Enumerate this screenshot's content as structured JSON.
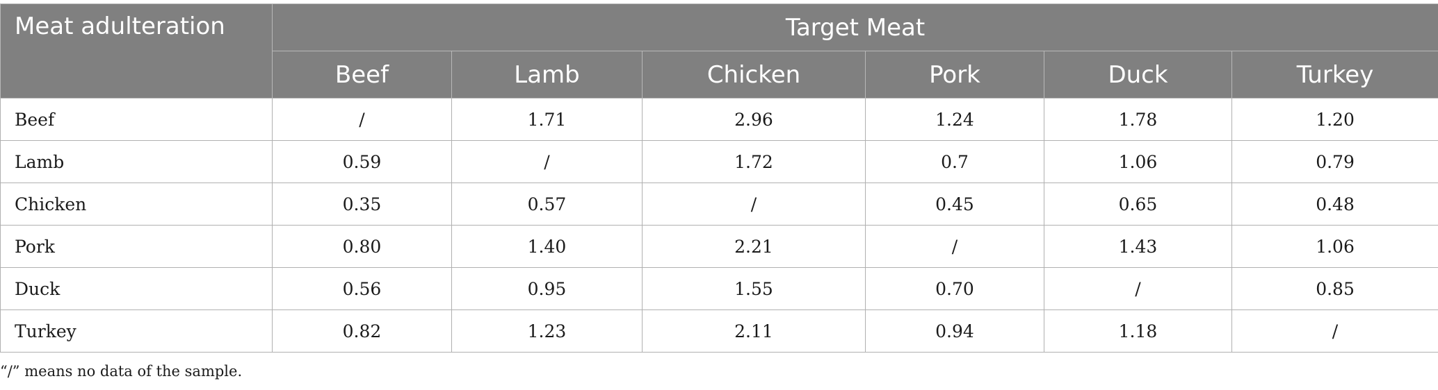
{
  "table": {
    "corner_header": "Meat adulteration",
    "group_header": "Target Meat",
    "columns": [
      "Beef",
      "Lamb",
      "Chicken",
      "Pork",
      "Duck",
      "Turkey"
    ],
    "rows": [
      {
        "label": "Beef",
        "values": [
          "/",
          "1.71",
          "2.96",
          "1.24",
          "1.78",
          "1.20"
        ]
      },
      {
        "label": "Lamb",
        "values": [
          "0.59",
          "/",
          "1.72",
          "0.7",
          "1.06",
          "0.79"
        ]
      },
      {
        "label": "Chicken",
        "values": [
          "0.35",
          "0.57",
          "/",
          "0.45",
          "0.65",
          "0.48"
        ]
      },
      {
        "label": "Pork",
        "values": [
          "0.80",
          "1.40",
          "2.21",
          "/",
          "1.43",
          "1.06"
        ]
      },
      {
        "label": "Duck",
        "values": [
          "0.56",
          "0.95",
          "1.55",
          "0.70",
          "/",
          "0.85"
        ]
      },
      {
        "label": "Turkey",
        "values": [
          "0.82",
          "1.23",
          "2.11",
          "0.94",
          "1.18",
          "/"
        ]
      }
    ]
  },
  "footnote": "“/” means no data of the sample."
}
